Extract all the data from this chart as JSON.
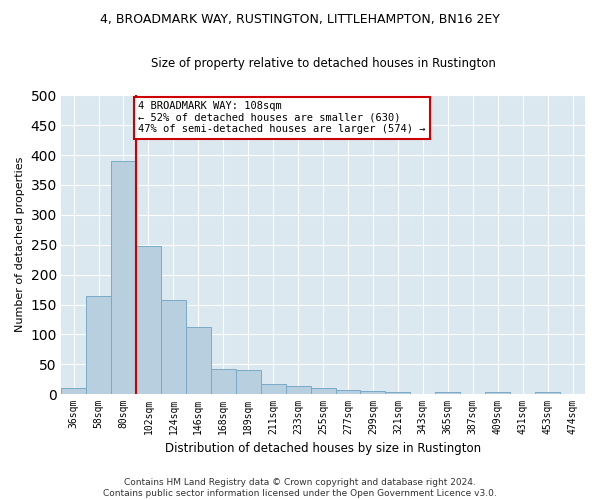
{
  "title1": "4, BROADMARK WAY, RUSTINGTON, LITTLEHAMPTON, BN16 2EY",
  "title2": "Size of property relative to detached houses in Rustington",
  "xlabel": "Distribution of detached houses by size in Rustington",
  "ylabel": "Number of detached properties",
  "categories": [
    "36sqm",
    "58sqm",
    "80sqm",
    "102sqm",
    "124sqm",
    "146sqm",
    "168sqm",
    "189sqm",
    "211sqm",
    "233sqm",
    "255sqm",
    "277sqm",
    "299sqm",
    "321sqm",
    "343sqm",
    "365sqm",
    "387sqm",
    "409sqm",
    "431sqm",
    "453sqm",
    "474sqm"
  ],
  "values": [
    10,
    165,
    390,
    248,
    157,
    113,
    43,
    40,
    17,
    13,
    10,
    7,
    5,
    3,
    0,
    4,
    0,
    3,
    0,
    4,
    0
  ],
  "bar_color": "#b8cfe0",
  "bar_edge_color": "#7aaac8",
  "vline_color": "#cc0000",
  "annotation_box_color": "#cc0000",
  "ylim": [
    0,
    500
  ],
  "yticks": [
    0,
    50,
    100,
    150,
    200,
    250,
    300,
    350,
    400,
    450,
    500
  ],
  "annotation_line1": "4 BROADMARK WAY: 108sqm",
  "annotation_line2": "← 52% of detached houses are smaller (630)",
  "annotation_line3": "47% of semi-detached houses are larger (574) →",
  "footer1": "Contains HM Land Registry data © Crown copyright and database right 2024.",
  "footer2": "Contains public sector information licensed under the Open Government Licence v3.0.",
  "fig_bg_color": "#ffffff",
  "plot_bg_color": "#dce8f0",
  "grid_color": "#ffffff",
  "title1_fontsize": 9,
  "title2_fontsize": 8.5,
  "xlabel_fontsize": 8.5,
  "ylabel_fontsize": 8,
  "tick_fontsize": 7,
  "footer_fontsize": 6.5,
  "annotation_fontsize": 7.5,
  "vline_x": 2.5
}
